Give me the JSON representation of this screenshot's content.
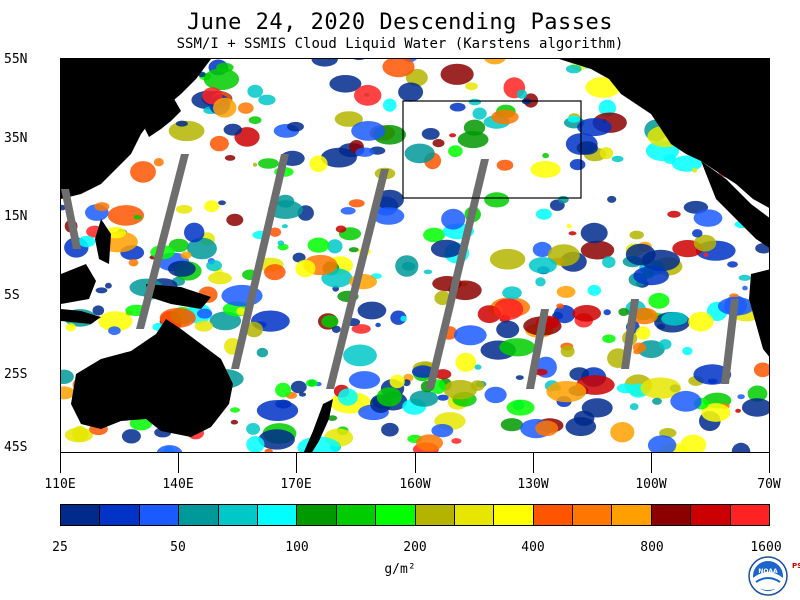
{
  "title": "June 24, 2020  Descending Passes",
  "subtitle": "SSM/I + SSMIS Cloud Liquid Water (Karstens algorithm)",
  "lat_labels": [
    "55N",
    "35N",
    "15N",
    "5S",
    "25S",
    "45S"
  ],
  "lon_labels": [
    "110E",
    "140E",
    "170E",
    "160W",
    "130W",
    "100W",
    "70W"
  ],
  "colorbar": {
    "colors": [
      "#002a8c",
      "#0033c6",
      "#1a5aff",
      "#009999",
      "#00c8c8",
      "#00ffff",
      "#009900",
      "#00cc00",
      "#00ff00",
      "#b4b400",
      "#e6e600",
      "#ffff00",
      "#ff5500",
      "#ff7700",
      "#ffa000",
      "#8c0000",
      "#cc0000",
      "#ff2222"
    ],
    "labels": [
      "25",
      "50",
      "100",
      "200",
      "400",
      "800",
      "1600"
    ],
    "units": "g/m²"
  },
  "colors": {
    "land": "#000000",
    "no_data_gap": "#6e6e6e",
    "background": "#ffffff"
  },
  "logo": {
    "icon": "noaa-logo-icon",
    "text": "NOAA"
  },
  "psl_mark": "PSL"
}
